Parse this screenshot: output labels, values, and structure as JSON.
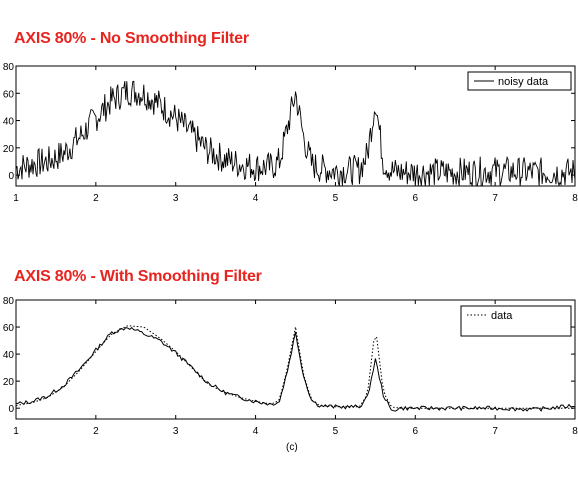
{
  "chart_data": [
    {
      "type": "line",
      "title": "AXIS 80% - No Smoothing Filter",
      "xlim": [
        1,
        8
      ],
      "ylim": [
        -8,
        80
      ],
      "xticks": [
        1,
        2,
        3,
        4,
        5,
        6,
        7,
        8
      ],
      "yticks": [
        0,
        20,
        40,
        60,
        80
      ],
      "ytick_labels": [
        "0",
        "20",
        "40",
        "60",
        "80"
      ],
      "legend": {
        "position": "top-right",
        "entries": [
          "noisy data"
        ]
      },
      "series": [
        {
          "name": "noisy data",
          "style": "solid",
          "color": "#000000",
          "x": [
            1.0,
            1.2,
            1.4,
            1.6,
            1.8,
            2.0,
            2.2,
            2.4,
            2.6,
            2.8,
            3.0,
            3.2,
            3.4,
            3.6,
            3.8,
            4.0,
            4.2,
            4.3,
            4.4,
            4.5,
            4.6,
            4.7,
            4.8,
            5.0,
            5.3,
            5.4,
            5.5,
            5.6,
            5.7,
            5.8,
            6.0,
            6.5,
            7.0,
            7.5,
            8.0
          ],
          "y": [
            5,
            8,
            10,
            16,
            28,
            42,
            55,
            62,
            60,
            52,
            42,
            30,
            18,
            12,
            8,
            6,
            6,
            10,
            35,
            60,
            28,
            8,
            5,
            3,
            4,
            15,
            55,
            10,
            3,
            2,
            2,
            2,
            3,
            2,
            2
          ]
        }
      ]
    },
    {
      "type": "line",
      "title": "AXIS 80% - With Smoothing Filter",
      "xlim": [
        1,
        8
      ],
      "ylim": [
        -8,
        80
      ],
      "xticks": [
        1,
        2,
        3,
        4,
        5,
        6,
        7,
        8
      ],
      "yticks": [
        0,
        20,
        40,
        60,
        80
      ],
      "ytick_labels": [
        "0",
        "20",
        "40",
        "60",
        "80"
      ],
      "legend": {
        "position": "top-right",
        "entries": [
          "data"
        ]
      },
      "caption": "(c)",
      "series": [
        {
          "name": "data",
          "style": "dotted",
          "color": "#000000",
          "x": [
            1.0,
            1.2,
            1.4,
            1.6,
            1.8,
            2.0,
            2.2,
            2.4,
            2.6,
            2.8,
            3.0,
            3.2,
            3.4,
            3.6,
            3.8,
            4.0,
            4.2,
            4.3,
            4.4,
            4.5,
            4.6,
            4.7,
            4.8,
            5.0,
            5.3,
            5.4,
            5.5,
            5.6,
            5.7,
            5.8,
            6.0,
            6.5,
            7.0,
            7.5,
            8.0
          ],
          "y": [
            2,
            4,
            8,
            16,
            28,
            42,
            55,
            61,
            60,
            52,
            42,
            30,
            18,
            12,
            8,
            5,
            3,
            6,
            30,
            60,
            25,
            6,
            2,
            1,
            1,
            10,
            60,
            12,
            1,
            0,
            0,
            0,
            0,
            0,
            0
          ]
        },
        {
          "name": "",
          "style": "solid",
          "color": "#000000",
          "x": [
            1.0,
            1.2,
            1.4,
            1.6,
            1.8,
            2.0,
            2.2,
            2.4,
            2.6,
            2.8,
            3.0,
            3.2,
            3.4,
            3.6,
            3.8,
            4.0,
            4.2,
            4.3,
            4.4,
            4.5,
            4.6,
            4.7,
            4.8,
            5.0,
            5.3,
            5.4,
            5.5,
            5.6,
            5.7,
            5.8,
            6.0,
            6.5,
            7.0,
            7.5,
            8.0
          ],
          "y": [
            3,
            5,
            9,
            17,
            29,
            43,
            56,
            60,
            55,
            50,
            41,
            30,
            19,
            12,
            8,
            5,
            3,
            5,
            28,
            56,
            24,
            6,
            2,
            1,
            1,
            8,
            36,
            10,
            -2,
            0,
            0,
            0,
            0,
            -1,
            2
          ]
        }
      ]
    }
  ]
}
